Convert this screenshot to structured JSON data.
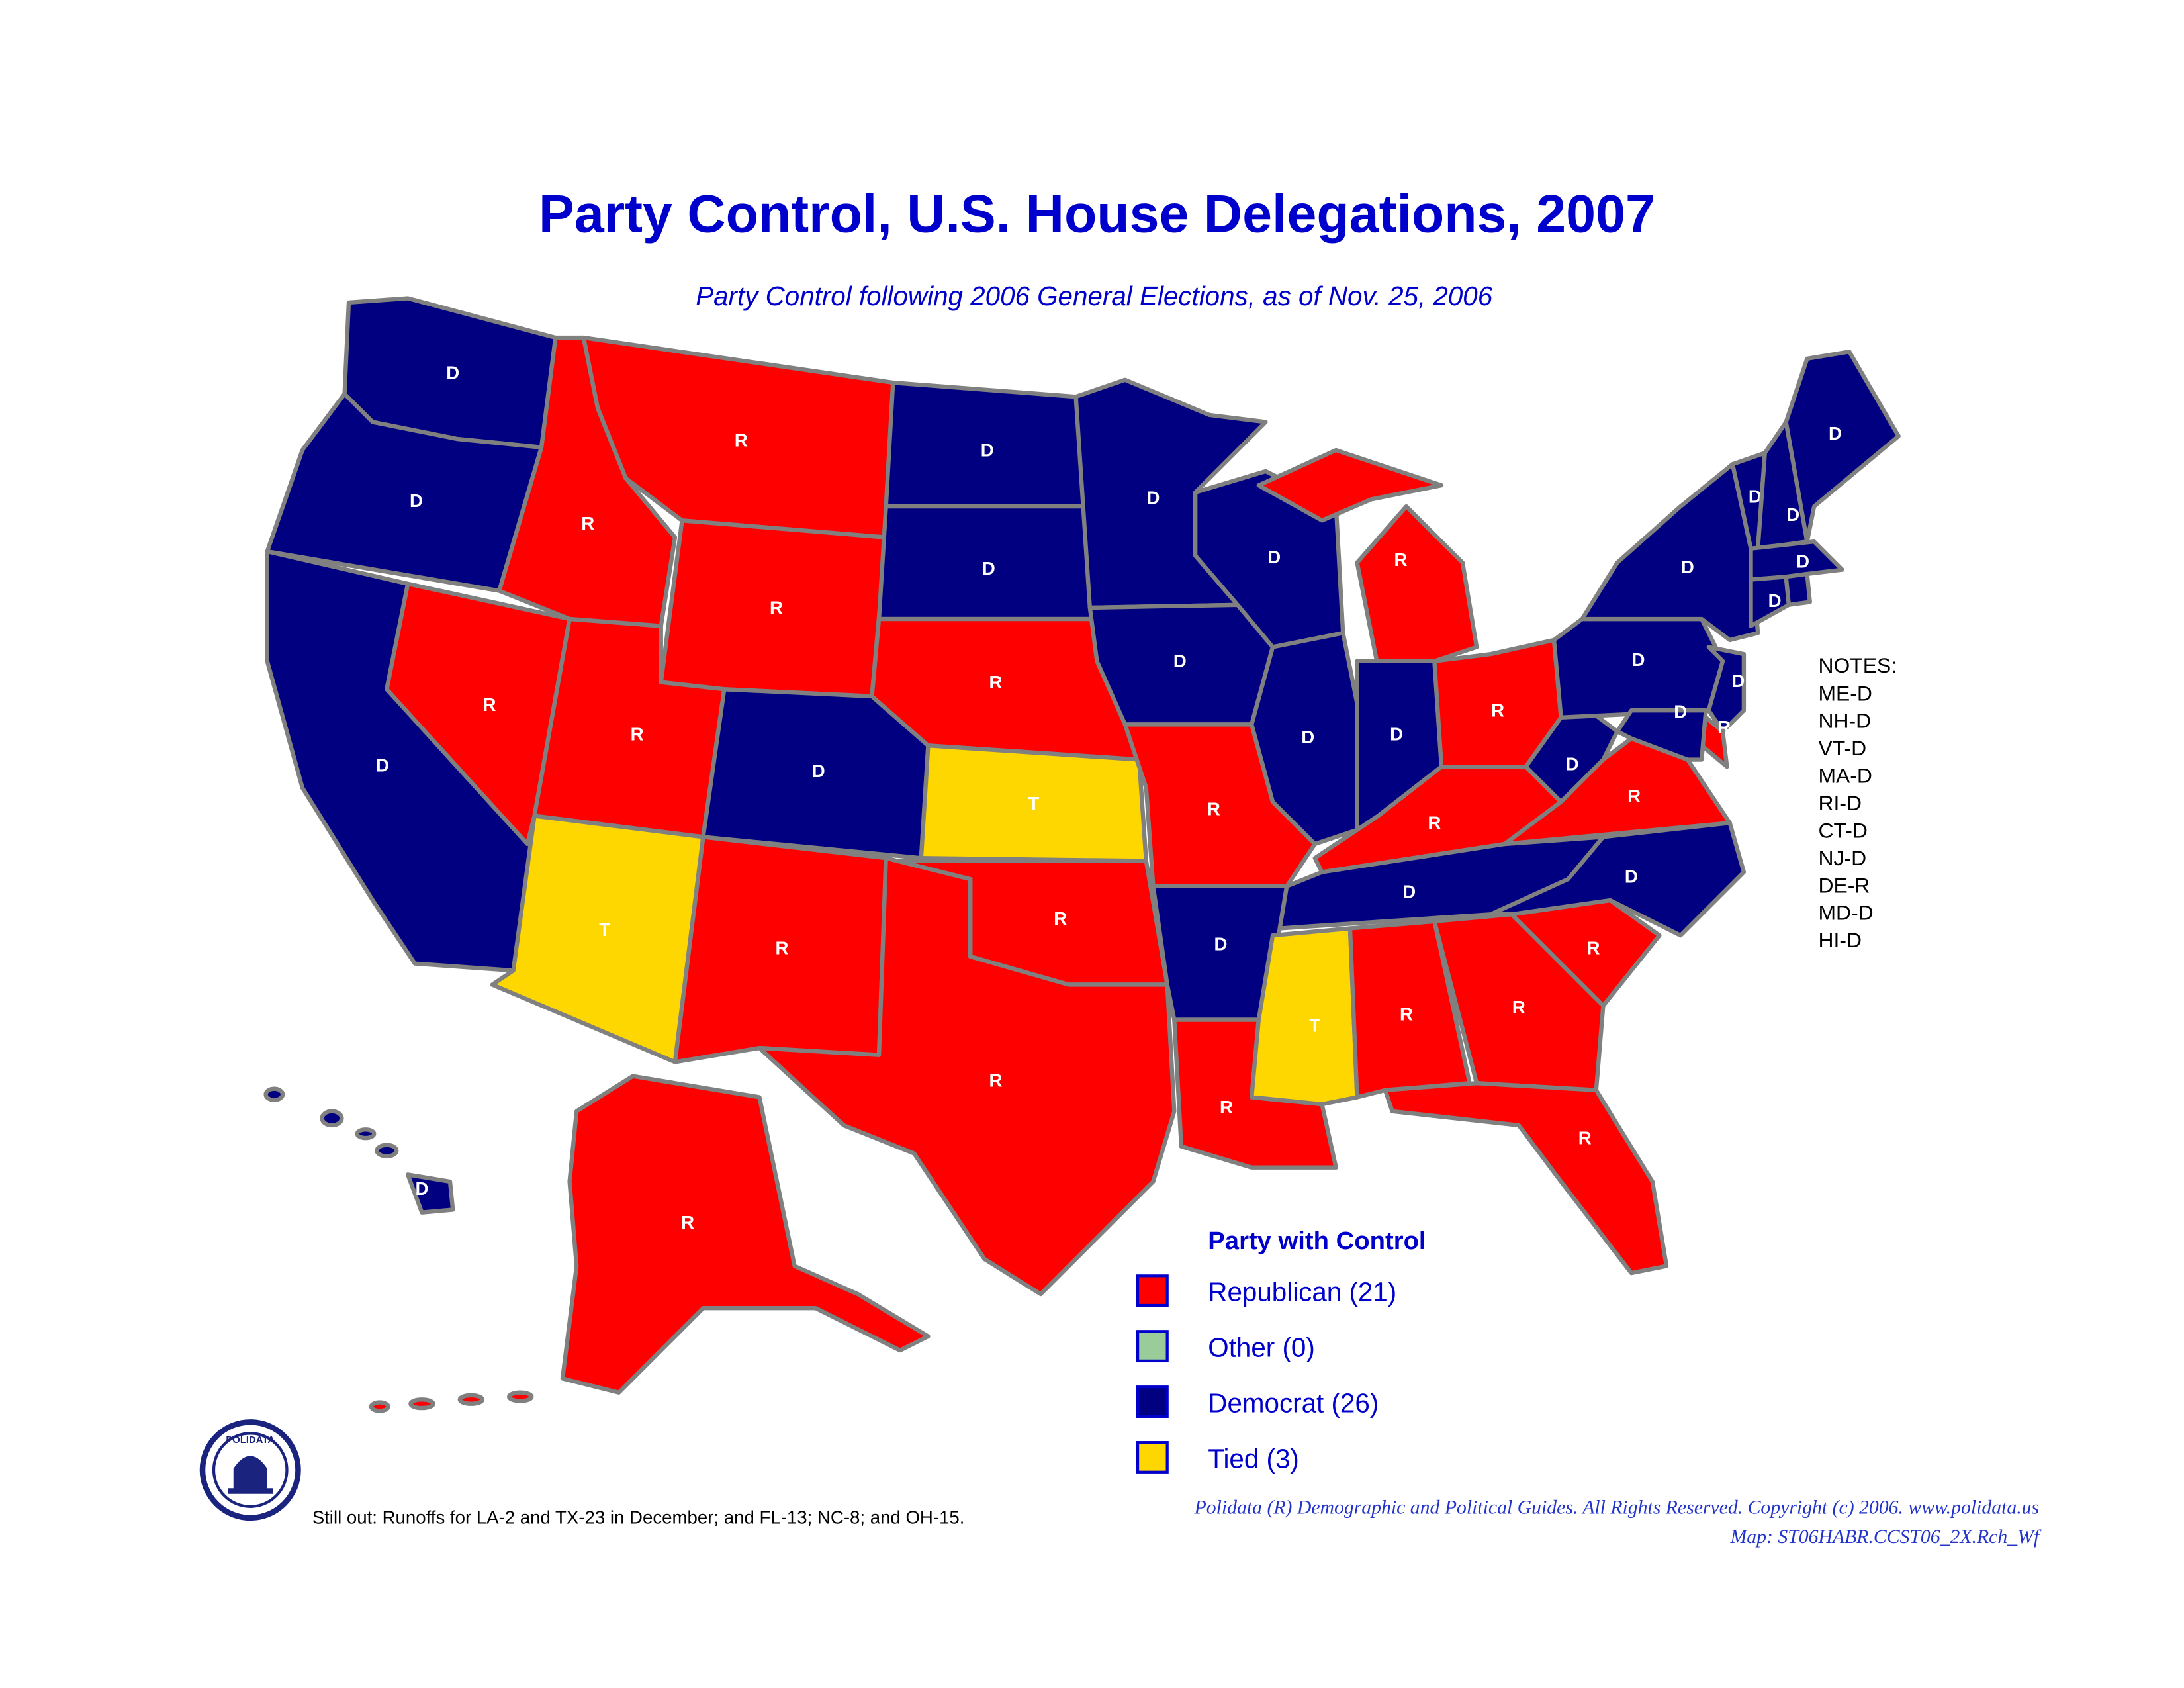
{
  "header": {
    "title": "Party Control, U.S. House Delegations, 2007",
    "subtitle": "Party Control following 2006 General Elections, as of Nov. 25, 2006"
  },
  "states": [
    {
      "label": "D",
      "color": "#000080"
    },
    {
      "label": "D",
      "color": "#000080"
    },
    {
      "label": "D",
      "color": "#000080"
    },
    {
      "label": "R",
      "color": "#ff0000"
    },
    {
      "label": "R",
      "color": "#ff0000"
    },
    {
      "label": "R",
      "color": "#ff0000"
    },
    {
      "label": "R",
      "color": "#ff0000"
    },
    {
      "label": "R",
      "color": "#ff0000"
    },
    {
      "label": "T",
      "color": "#ffd700"
    },
    {
      "label": "D",
      "color": "#000080"
    },
    {
      "label": "R",
      "color": "#ff0000"
    },
    {
      "label": "D",
      "color": "#000080"
    },
    {
      "label": "D",
      "color": "#000080"
    },
    {
      "label": "R",
      "color": "#ff0000"
    },
    {
      "label": "T",
      "color": "#ffd700"
    },
    {
      "label": "R",
      "color": "#ff0000"
    },
    {
      "label": "R",
      "color": "#ff0000"
    },
    {
      "label": "D",
      "color": "#000080"
    },
    {
      "label": "D",
      "color": "#000080"
    },
    {
      "label": "R",
      "color": "#ff0000"
    },
    {
      "label": "D",
      "color": "#000080"
    },
    {
      "label": "R",
      "color": "#ff0000"
    },
    {
      "label": "D",
      "color": "#000080"
    },
    {
      "label": "D",
      "color": "#000080"
    },
    {
      "label": "R",
      "color": "#ff0000"
    },
    {
      "label": "D",
      "color": "#000080"
    },
    {
      "label": "R",
      "color": "#ff0000"
    },
    {
      "label": "R",
      "color": "#ff0000"
    },
    {
      "label": "D",
      "color": "#000080"
    },
    {
      "label": "T",
      "color": "#ffd700"
    },
    {
      "label": "R",
      "color": "#ff0000"
    },
    {
      "label": "R",
      "color": "#ff0000"
    },
    {
      "label": "R",
      "color": "#ff0000"
    },
    {
      "label": "R",
      "color": "#ff0000"
    },
    {
      "label": "D",
      "color": "#000080"
    },
    {
      "label": "R",
      "color": "#ff0000"
    },
    {
      "label": "D",
      "color": "#000080"
    },
    {
      "label": "D",
      "color": "#000080"
    },
    {
      "label": "D",
      "color": "#000080"
    },
    {
      "label": "D",
      "color": "#000080"
    },
    {
      "label": "R",
      "color": "#ff0000"
    },
    {
      "label": "D",
      "color": "#000080"
    },
    {
      "label": "D",
      "color": "#000080"
    },
    {
      "label": "D",
      "color": "#000080"
    },
    {
      "label": "D",
      "color": "#000080"
    },
    {
      "label": "D",
      "color": "#000080"
    },
    {
      "label": "D",
      "color": "#000080"
    },
    {
      "color": "#000080"
    },
    {
      "label": "R",
      "color": "#ff0000"
    },
    {
      "label": "D",
      "color": "#000080"
    }
  ],
  "notes": {
    "title": "NOTES:",
    "items": [
      "ME-D",
      "NH-D",
      "VT-D",
      "MA-D",
      "RI-D",
      "CT-D",
      "NJ-D",
      "DE-R",
      "MD-D",
      "HI-D"
    ]
  },
  "legend": {
    "title": "Party with Control",
    "items": [
      {
        "label": "Republican (21)",
        "color": "#ff0000"
      },
      {
        "label": "Other (0)",
        "color": "#99cc99"
      },
      {
        "label": "Democrat (26)",
        "color": "#000080"
      },
      {
        "label": "Tied (3)",
        "color": "#ffd700"
      }
    ]
  },
  "logo": "POLIDATA",
  "footnote": "Still out: Runoffs for LA-2 and TX-23 in December; and FL-13; NC-8; and OH-15.",
  "copyright": "Polidata (R) Demographic and Political Guides. All Rights Reserved. Copyright (c) 2006. www.polidata.us",
  "map_id": "Map: ST06HABR.CCST06_2X.Rch_Wf"
}
